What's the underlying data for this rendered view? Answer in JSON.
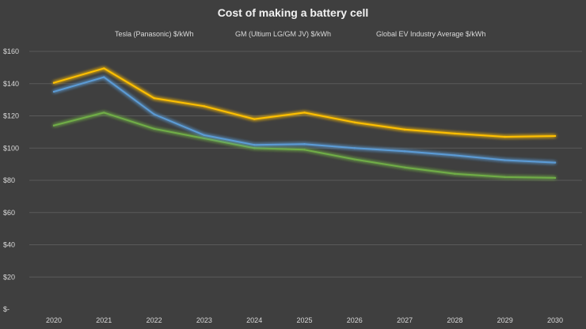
{
  "chart_data": {
    "type": "line",
    "title": "Cost of making a battery cell",
    "xlabel": "",
    "ylabel": "",
    "x": [
      "2020",
      "2021",
      "2022",
      "2023",
      "2024",
      "2025",
      "2026",
      "2027",
      "2028",
      "2029",
      "2030"
    ],
    "y_ticks": [
      "$-",
      "$20",
      "$40",
      "$60",
      "$80",
      "$100",
      "$120",
      "$140",
      "$160"
    ],
    "ylim": [
      0,
      160
    ],
    "grid": true,
    "legend_position": "top",
    "series": [
      {
        "name": "Tesla (Panasonic) $/kWh",
        "color": "#70ad47",
        "values": [
          114,
          122,
          112,
          106,
          100,
          99,
          93,
          88,
          84,
          82,
          81.5
        ]
      },
      {
        "name": "GM (Ultium LG/GM JV) $/kWh",
        "color": "#5b9bd5",
        "values": [
          135,
          144,
          121,
          108,
          102,
          102.5,
          100,
          98,
          95.5,
          92.5,
          91
        ]
      },
      {
        "name": "Global EV Industry Average $/kWh",
        "color": "#ffc000",
        "values": [
          140.5,
          149.5,
          131,
          126,
          118,
          122,
          116,
          111.5,
          109,
          107,
          107.5
        ]
      }
    ]
  }
}
